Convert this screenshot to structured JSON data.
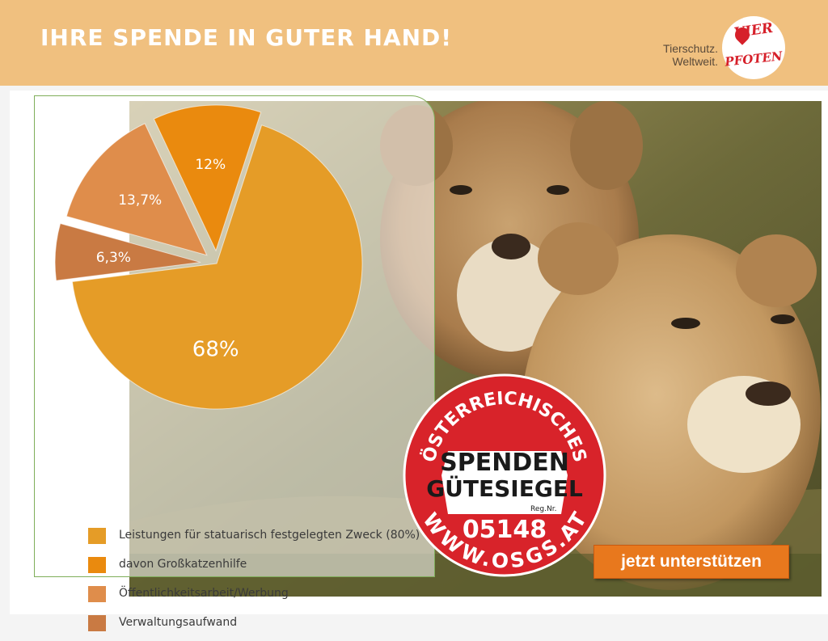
{
  "header": {
    "title": "IHRE SPENDE IN GUTER HAND!",
    "tagline_line1": "Tierschutz.",
    "tagline_line2": "Weltweit.",
    "logo_line1": "VIER",
    "logo_line2": "PFOTEN"
  },
  "chart_data": {
    "type": "pie",
    "slices": [
      {
        "label": "Leistungen für statuarisch festgelegten Zweck (80%)",
        "value": 68,
        "display": "68%",
        "color": "#e59c27"
      },
      {
        "label": "davon Großkatzenhilfe",
        "value": 12,
        "display": "12%",
        "color": "#ea8a0e"
      },
      {
        "label": "Öffentlichkeitsarbeit/Werbung",
        "value": 13.7,
        "display": "13,7%",
        "color": "#df8d4b"
      },
      {
        "label": "Verwaltungsaufwand",
        "value": 6.3,
        "display": "6,3%",
        "color": "#c97a43"
      }
    ],
    "legend_position": "bottom"
  },
  "seal": {
    "arc_top": "ÖSTERREICHISCHES",
    "line1": "SPENDEN",
    "line2": "GÜTESIEGEL",
    "reg_label": "Reg.Nr.",
    "number": "05148",
    "arc_bottom": "WWW.OSGS.AT"
  },
  "cta": {
    "label": "jetzt unterstützen",
    "color": "#e8781d"
  },
  "colors": {
    "header_bg": "#f0c07f",
    "panel_border": "#7fae5a",
    "seal_red": "#d8232a"
  }
}
